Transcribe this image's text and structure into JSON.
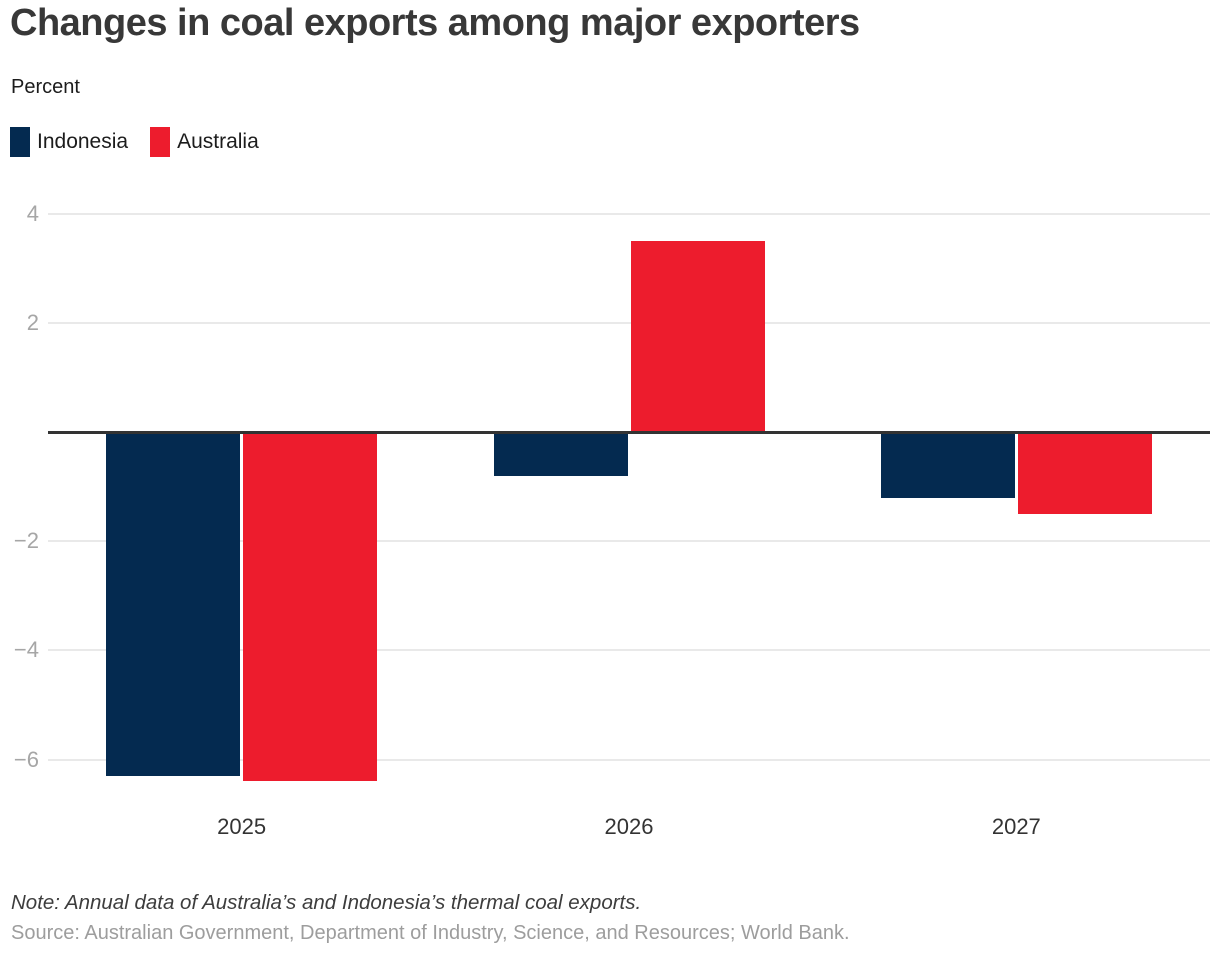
{
  "header": {
    "title": "Changes in coal exports among major exporters",
    "subtitle": "Percent"
  },
  "legend": [
    {
      "label": "Indonesia",
      "color": "#042a50"
    },
    {
      "label": "Australia",
      "color": "#ed1c2d"
    }
  ],
  "chart_data": {
    "type": "bar",
    "title": "Changes in coal exports among major exporters",
    "ylabel": "Percent",
    "xlabel": "",
    "categories": [
      "2025",
      "2026",
      "2027"
    ],
    "series": [
      {
        "name": "Indonesia",
        "color": "#042a50",
        "values": [
          -6.3,
          -0.8,
          -1.2
        ]
      },
      {
        "name": "Australia",
        "color": "#ed1c2d",
        "values": [
          -6.4,
          3.5,
          -1.5
        ]
      }
    ],
    "ylim": [
      -6.9,
      4.4
    ],
    "yticks": [
      4,
      2,
      -2,
      -4,
      -6
    ],
    "zero_baseline": 0,
    "grid": true,
    "legend_position": "top-left"
  },
  "footer": {
    "note": "Note: Annual data of Australia’s and Indonesia’s thermal coal exports.",
    "source": "Source: Australian Government, Department of Industry, Science, and Resources; World Bank."
  },
  "colors": {
    "indonesia": "#042a50",
    "australia": "#ed1c2d",
    "gridline": "#e9e9e9",
    "zero_line": "#333333",
    "y_tick_text": "#a6a6a6",
    "x_tick_text": "#333333",
    "title_text": "#383838",
    "note_text": "#3d3d3d",
    "source_text": "#9d9d9d"
  }
}
